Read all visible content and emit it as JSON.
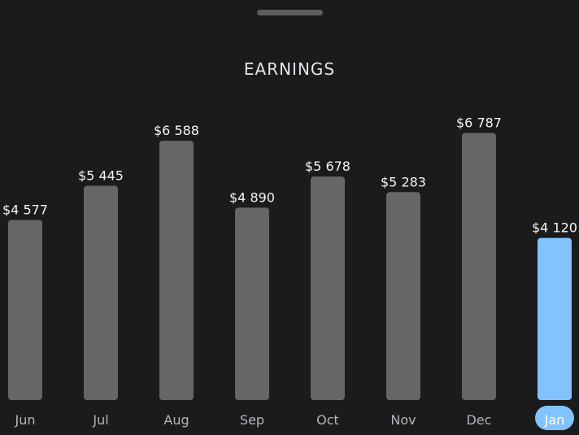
{
  "header": {
    "title": "EARNINGS"
  },
  "colors": {
    "background": "#1b1b1b",
    "bar": "#666666",
    "selected_bar": "#82c3fd",
    "handle": "#5e5e5e"
  },
  "chart_data": {
    "type": "bar",
    "categories": [
      "Jun",
      "Jul",
      "Aug",
      "Sep",
      "Oct",
      "Nov",
      "Dec",
      "Jan"
    ],
    "values": [
      4577,
      5445,
      6588,
      4890,
      5678,
      5283,
      6787,
      4120
    ],
    "value_labels": [
      "$4 577",
      "$5 445",
      "$6 588",
      "$4 890",
      "$5 678",
      "$5 283",
      "$6 787",
      "$4 120"
    ],
    "selected": "Jan",
    "title": "EARNINGS",
    "xlabel": "",
    "ylabel": "",
    "grid": false
  }
}
